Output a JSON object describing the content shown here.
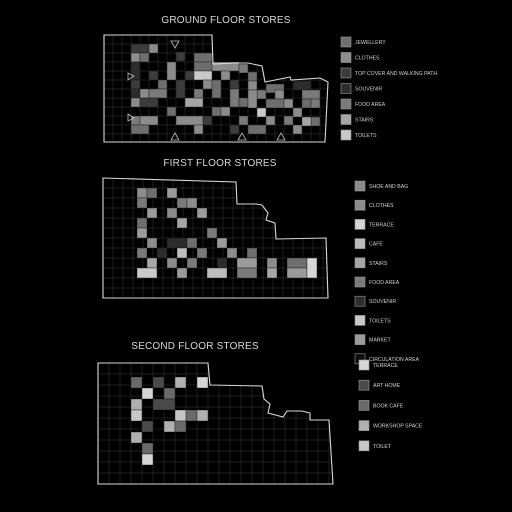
{
  "palette": {
    "jewellery": "#6e6e6e",
    "clothes": "#8c8c8c",
    "top_cover": "#3c3c3c",
    "souvenir": "#2c2c2c",
    "food": "#7a7a7a",
    "stairs": "#a6a6a6",
    "toilets": "#c9c9c9",
    "shoe_bag": "#8a8a8a",
    "terrace": "#d6d6d6",
    "cafe": "#bdbdbd",
    "market": "#9b9b9b",
    "circulation": "#0c0c0c",
    "art_home": "#4a4a4a",
    "book_cafe": "#6a6a6a",
    "workshop": "#b0b0b0",
    "toilet": "#c7c7c7"
  },
  "floors": [
    {
      "id": "ground",
      "title": "GROUND FLOOR STORES",
      "legend": [
        {
          "label": "JEWELLERY",
          "color_key": "jewellery"
        },
        {
          "label": "CLOTHES",
          "color_key": "clothes"
        },
        {
          "label": "TOP COVER AND WALKING PATH",
          "color_key": "top_cover"
        },
        {
          "label": "SOUVENIR",
          "color_key": "souvenir"
        },
        {
          "label": "FOOD AREA",
          "color_key": "food"
        },
        {
          "label": "STAIRS",
          "color_key": "stairs"
        },
        {
          "label": "TOILETS",
          "color_key": "toilets"
        }
      ]
    },
    {
      "id": "first",
      "title": "FIRST FLOOR STORES",
      "legend": [
        {
          "label": "SHOE AND BAG",
          "color_key": "shoe_bag"
        },
        {
          "label": "CLOTHES",
          "color_key": "clothes"
        },
        {
          "label": "TERRACE",
          "color_key": "terrace"
        },
        {
          "label": "CAFE",
          "color_key": "cafe"
        },
        {
          "label": "STAIRS",
          "color_key": "stairs"
        },
        {
          "label": "FOOD AREA",
          "color_key": "food"
        },
        {
          "label": "SOUVENIR",
          "color_key": "souvenir"
        },
        {
          "label": "TOILETS",
          "color_key": "toilets"
        },
        {
          "label": "MARKET",
          "color_key": "market"
        },
        {
          "label": "CIRCULATION AREA",
          "color_key": "circulation"
        }
      ]
    },
    {
      "id": "second",
      "title": "SECOND FLOOR STORES",
      "legend": [
        {
          "label": "TERRACE",
          "color_key": "terrace"
        },
        {
          "label": "ART HOME",
          "color_key": "art_home"
        },
        {
          "label": "BOOK CAFE",
          "color_key": "book_cafe"
        },
        {
          "label": "WORKSHOP SPACE",
          "color_key": "workshop"
        },
        {
          "label": "TOILET",
          "color_key": "toilet"
        }
      ]
    }
  ]
}
